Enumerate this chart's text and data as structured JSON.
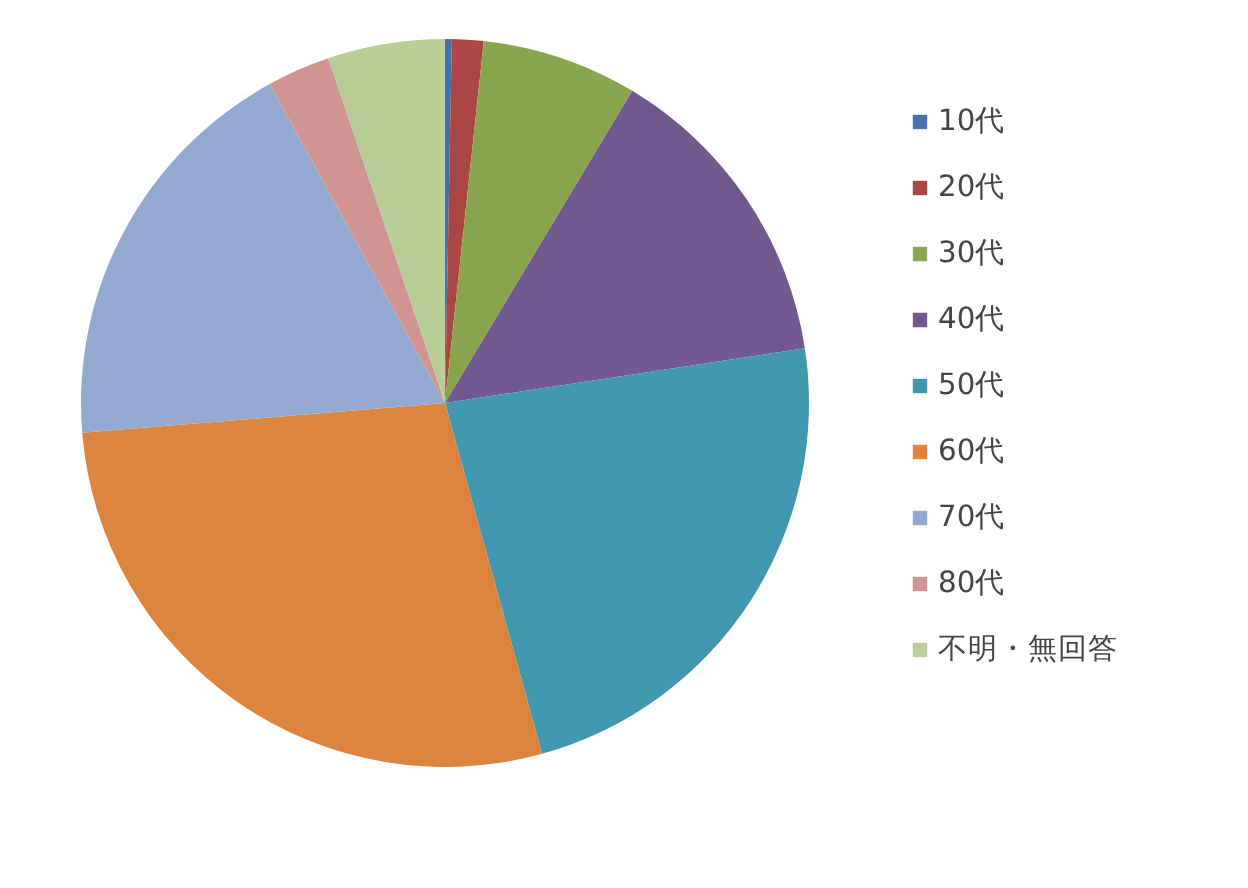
{
  "chart_data": {
    "type": "pie",
    "categories": [
      "10代",
      "20代",
      "30代",
      "40代",
      "50代",
      "60代",
      "70代",
      "80代",
      "不明・無回答"
    ],
    "values": [
      0.3,
      1.4,
      6.9,
      14,
      23.1,
      28,
      18.3,
      2.8,
      5.2
    ],
    "colors": [
      "#4572a7",
      "#aa4643",
      "#89a54e",
      "#71588f",
      "#4198af",
      "#db843d",
      "#93a9cf",
      "#d09493",
      "#b9cd96"
    ],
    "legend": "right"
  }
}
